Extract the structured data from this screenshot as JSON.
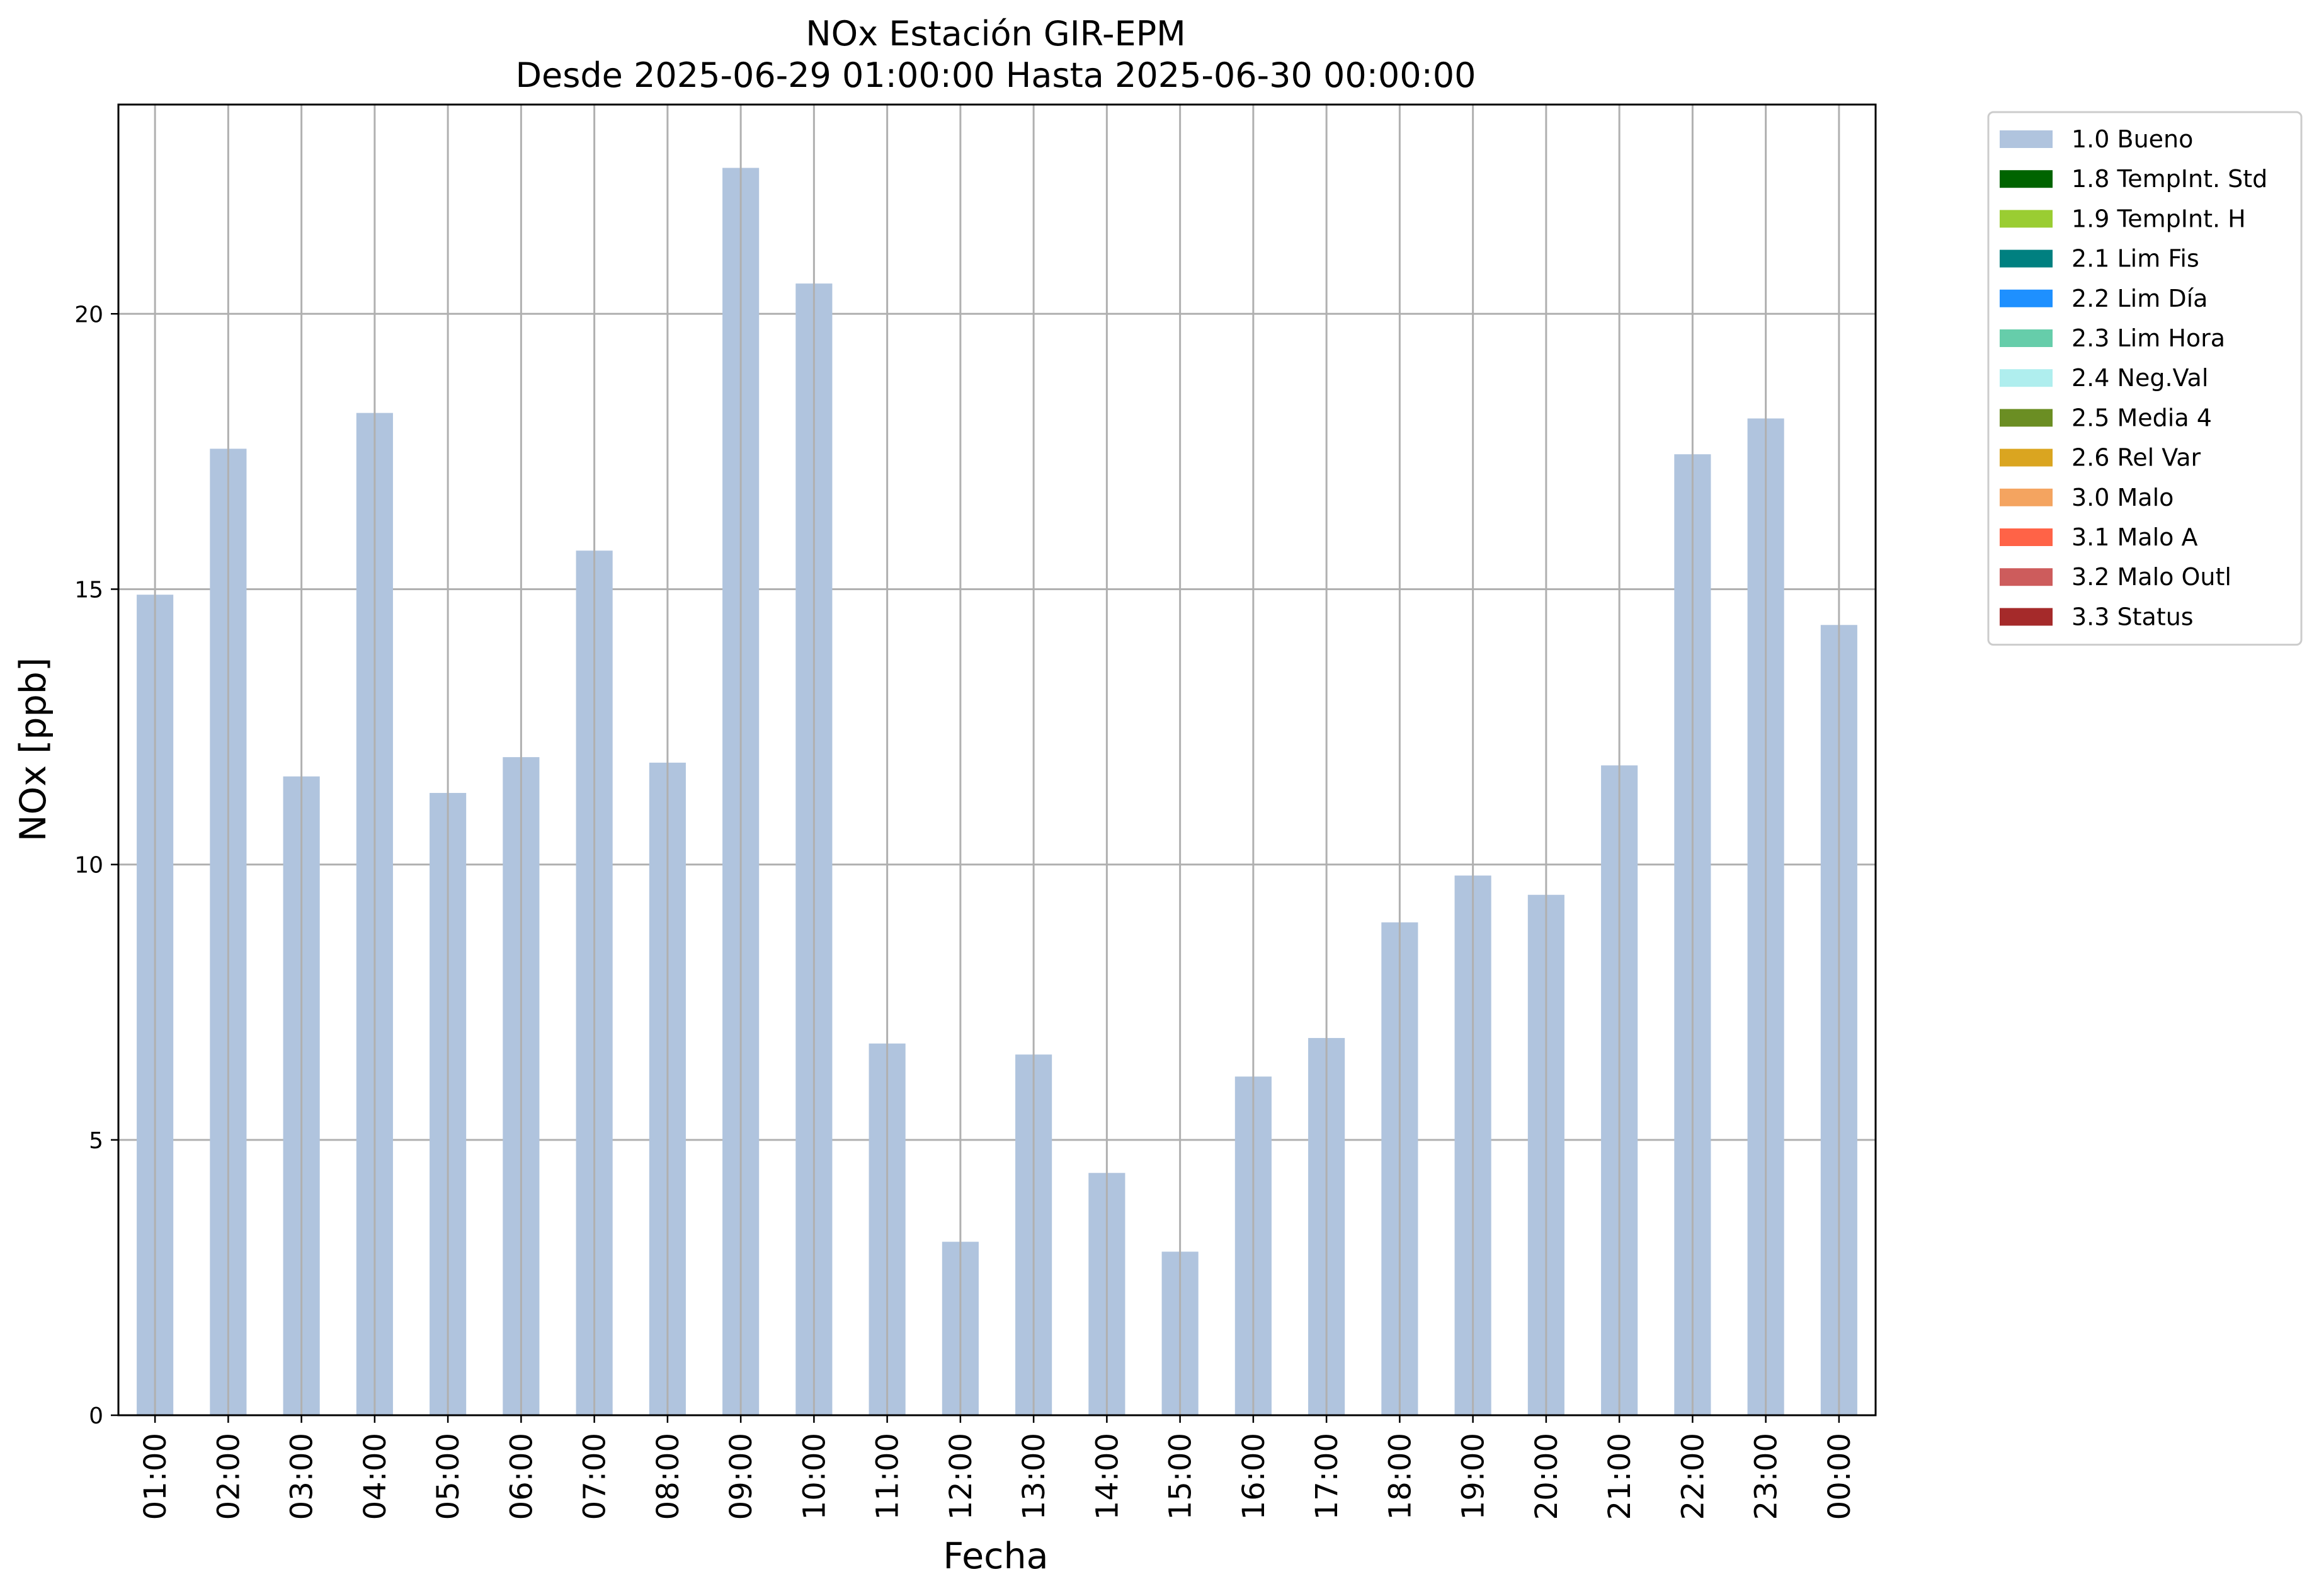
{
  "chart_data": {
    "type": "bar",
    "title": "NOx Estación GIR-EPM",
    "subtitle": "Desde 2025-06-29 01:00:00 Hasta 2025-06-30 00:00:00",
    "xlabel": "Fecha",
    "ylabel": "NOx [ppb]",
    "ylim": [
      0,
      23.8
    ],
    "yticks": [
      "0",
      "5",
      "10",
      "15",
      "20"
    ],
    "grid": true,
    "legend_position": "outside-right",
    "categories": [
      "01:00",
      "02:00",
      "03:00",
      "04:00",
      "05:00",
      "06:00",
      "07:00",
      "08:00",
      "09:00",
      "10:00",
      "11:00",
      "12:00",
      "13:00",
      "14:00",
      "15:00",
      "16:00",
      "17:00",
      "18:00",
      "19:00",
      "20:00",
      "21:00",
      "22:00",
      "23:00",
      "00:00"
    ],
    "series": [
      {
        "name": "1.0 Bueno",
        "color": "#b0c4de",
        "values": [
          14.9,
          17.55,
          11.6,
          18.2,
          11.3,
          11.95,
          15.7,
          11.85,
          22.65,
          20.55,
          6.75,
          3.15,
          6.55,
          4.4,
          2.97,
          6.15,
          6.85,
          8.95,
          9.8,
          9.45,
          11.8,
          17.45,
          18.1,
          14.35
        ]
      }
    ],
    "legend": [
      {
        "label": "1.0 Bueno",
        "color": "#b0c4de"
      },
      {
        "label": "1.8 TempInt. Std",
        "color": "#006400"
      },
      {
        "label": "1.9 TempInt. H",
        "color": "#9acd32"
      },
      {
        "label": "2.1 Lim Fis",
        "color": "#008080"
      },
      {
        "label": "2.2 Lim Día",
        "color": "#1e90ff"
      },
      {
        "label": "2.3 Lim Hora",
        "color": "#66cdaa"
      },
      {
        "label": "2.4 Neg.Val",
        "color": "#afeeee"
      },
      {
        "label": "2.5 Media 4",
        "color": "#6b8e23"
      },
      {
        "label": "2.6 Rel Var",
        "color": "#daa520"
      },
      {
        "label": "3.0 Malo",
        "color": "#f4a460"
      },
      {
        "label": "3.1 Malo A",
        "color": "#ff6347"
      },
      {
        "label": "3.2 Malo Outl",
        "color": "#cd5c5c"
      },
      {
        "label": "3.3 Status",
        "color": "#a52a2a"
      }
    ]
  }
}
